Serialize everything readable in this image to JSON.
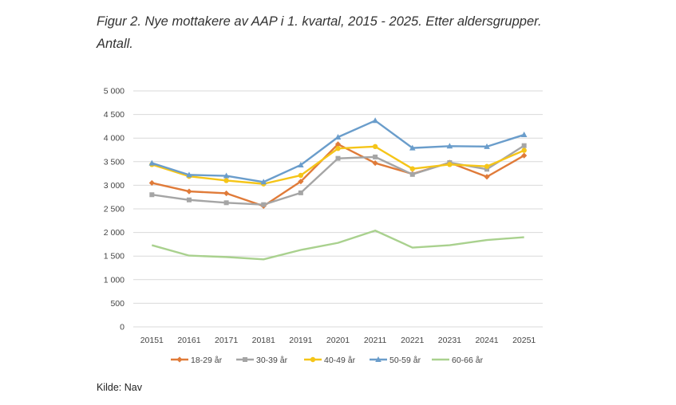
{
  "figure": {
    "title": "Figur 2. Nye mottakere av AAP i 1. kvartal, 2015 - 2025. Etter aldersgrupper. Antall.",
    "source": "Kilde: Nav"
  },
  "chart_data": {
    "type": "line",
    "categories": [
      "20151",
      "20161",
      "20171",
      "20181",
      "20191",
      "20201",
      "20211",
      "20221",
      "20231",
      "20241",
      "20251"
    ],
    "ylim": [
      0,
      5000
    ],
    "yticks": [
      0,
      500,
      1000,
      1500,
      2000,
      2500,
      3000,
      3500,
      4000,
      4500,
      5000
    ],
    "ytick_labels": [
      "0",
      "500",
      "1 000",
      "1 500",
      "2 000",
      "2 500",
      "3 000",
      "3 500",
      "4 000",
      "4 500",
      "5 000"
    ],
    "grid": true,
    "legend_position": "bottom",
    "series": [
      {
        "name": "18-29 år",
        "color": "#E07B39",
        "marker": "diamond",
        "values": [
          3050,
          2870,
          2830,
          2560,
          3080,
          3870,
          3470,
          3240,
          3480,
          3180,
          3630
        ]
      },
      {
        "name": "30-39 år",
        "color": "#A5A5A5",
        "marker": "square",
        "values": [
          2800,
          2690,
          2630,
          2590,
          2840,
          3570,
          3600,
          3230,
          3480,
          3340,
          3840
        ]
      },
      {
        "name": "40-49 år",
        "color": "#F5C518",
        "marker": "circle",
        "values": [
          3440,
          3190,
          3100,
          3030,
          3210,
          3780,
          3820,
          3350,
          3440,
          3400,
          3740
        ]
      },
      {
        "name": "50-59 år",
        "color": "#6A9DCB",
        "marker": "triangle",
        "values": [
          3470,
          3220,
          3200,
          3070,
          3430,
          4020,
          4370,
          3790,
          3830,
          3820,
          4070
        ]
      },
      {
        "name": "60-66 år",
        "color": "#A9D18E",
        "marker": "none",
        "values": [
          1730,
          1510,
          1480,
          1430,
          1630,
          1780,
          2040,
          1680,
          1730,
          1840,
          1900
        ]
      }
    ]
  }
}
